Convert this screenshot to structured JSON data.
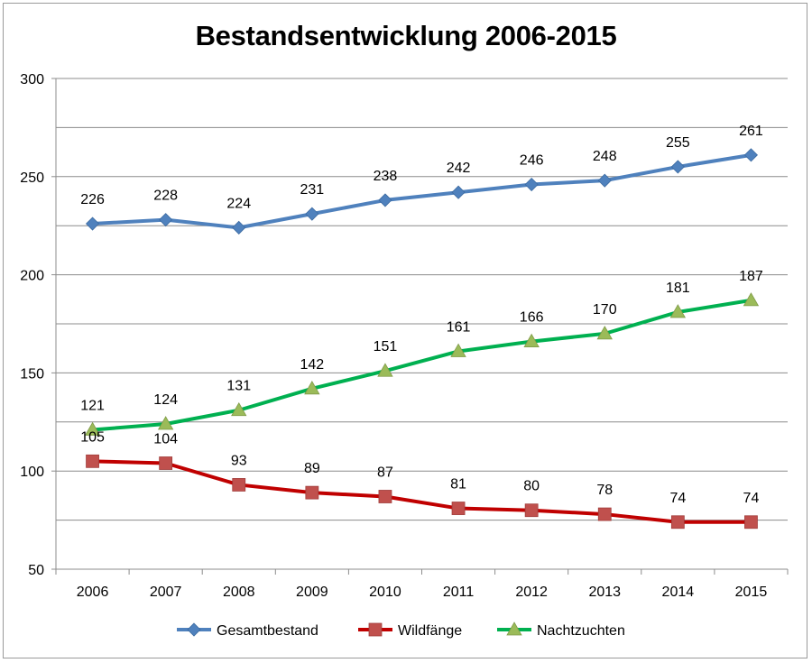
{
  "chart_data": {
    "type": "line",
    "title": "Bestandsentwicklung 2006-2015",
    "xlabel": "",
    "ylabel": "",
    "categories": [
      "2006",
      "2007",
      "2008",
      "2009",
      "2010",
      "2011",
      "2012",
      "2013",
      "2014",
      "2015"
    ],
    "ylim": [
      50,
      300
    ],
    "yticks": [
      50,
      100,
      150,
      200,
      250,
      300
    ],
    "grid": true,
    "legend_position": "bottom",
    "series": [
      {
        "name": "Gesamtbestand",
        "color": "#4f81bd",
        "marker": "diamond",
        "values": [
          226,
          228,
          224,
          231,
          238,
          242,
          246,
          248,
          255,
          261
        ]
      },
      {
        "name": "Wildfänge",
        "color": "#c0504d",
        "line_color": "#c00000",
        "marker": "square",
        "values": [
          105,
          104,
          93,
          89,
          87,
          81,
          80,
          78,
          74,
          74
        ]
      },
      {
        "name": "Nachtzuchten",
        "color": "#9bbb59",
        "line_color": "#00b050",
        "marker": "triangle",
        "values": [
          121,
          124,
          131,
          142,
          151,
          161,
          166,
          170,
          181,
          187
        ]
      }
    ]
  }
}
